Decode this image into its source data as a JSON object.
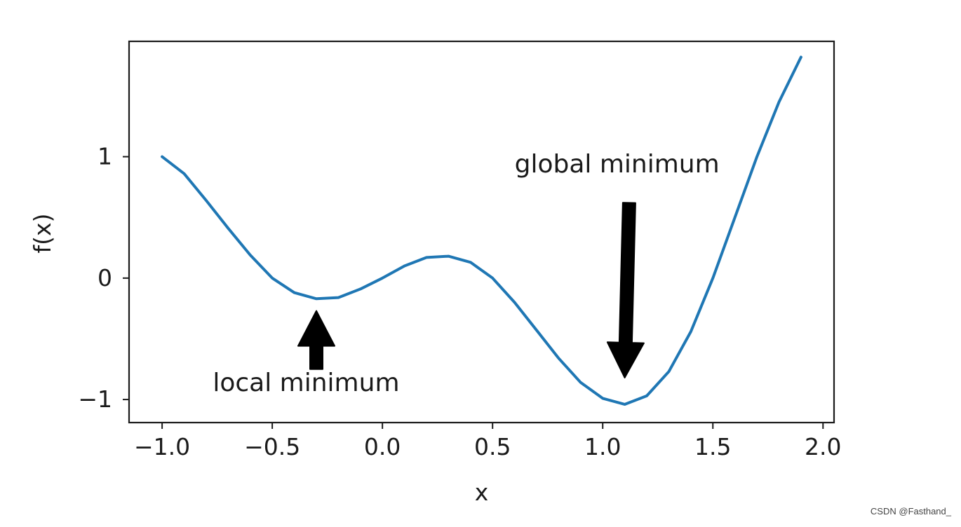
{
  "chart_data": {
    "type": "line",
    "title": "",
    "xlabel": "x",
    "ylabel": "f(x)",
    "xlim": [
      -1.15,
      2.05
    ],
    "ylim": [
      -1.19,
      1.95
    ],
    "xticks": [
      -1.0,
      -0.5,
      0.0,
      0.5,
      1.0,
      1.5,
      2.0
    ],
    "xtick_labels": [
      "−1.0",
      "−0.5",
      "0.0",
      "0.5",
      "1.0",
      "1.5",
      "2.0"
    ],
    "yticks": [
      -1,
      0,
      1
    ],
    "ytick_labels": [
      "−1",
      "0",
      "1"
    ],
    "grid": false,
    "series": [
      {
        "color": "#1f77b4",
        "x": [
          -1.0,
          -0.9,
          -0.8,
          -0.7,
          -0.6,
          -0.5,
          -0.4,
          -0.3,
          -0.2,
          -0.1,
          0.0,
          0.1,
          0.2,
          0.3,
          0.4,
          0.5,
          0.6,
          0.7,
          0.8,
          0.9,
          1.0,
          1.1,
          1.2,
          1.3,
          1.4,
          1.5,
          1.6,
          1.7,
          1.8,
          1.9
        ],
        "y": [
          1.0,
          0.86,
          0.64,
          0.41,
          0.19,
          0.0,
          -0.12,
          -0.17,
          -0.16,
          -0.09,
          0.0,
          0.1,
          0.17,
          0.18,
          0.13,
          0.0,
          -0.2,
          -0.43,
          -0.66,
          -0.86,
          -0.99,
          -1.04,
          -0.97,
          -0.77,
          -0.44,
          0.0,
          0.5,
          1.0,
          1.45,
          1.82
        ]
      }
    ],
    "annotations": [
      {
        "text": "local minimum",
        "point": [
          -0.3,
          -0.27
        ],
        "text_pos": [
          -0.77,
          -0.93
        ],
        "arrow_tail": [
          -0.3,
          -0.75
        ],
        "color": "#000000"
      },
      {
        "text": "global minimum",
        "point": [
          1.1,
          -0.82
        ],
        "text_pos": [
          0.6,
          0.87
        ],
        "arrow_tail": [
          1.12,
          0.62
        ],
        "color": "#000000"
      }
    ]
  },
  "watermark": "CSDN @Fasthand_"
}
